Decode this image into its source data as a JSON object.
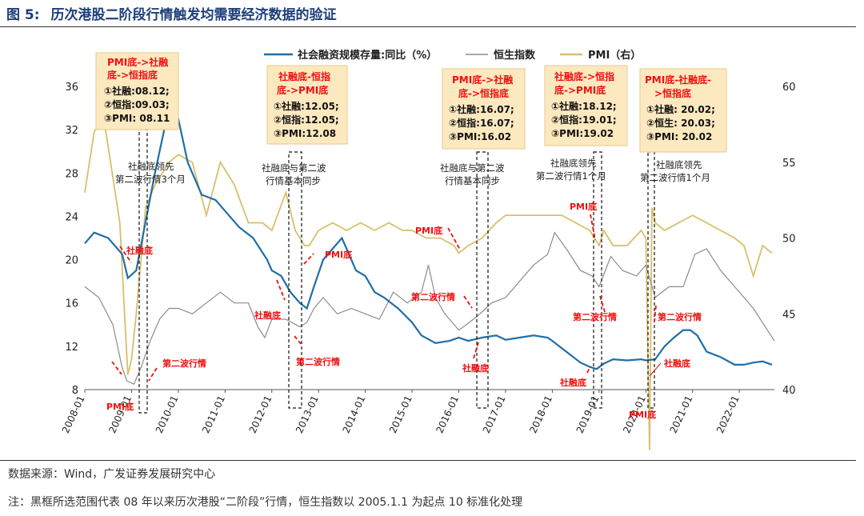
{
  "figure": {
    "number": "图 5:",
    "title": "历次港股二阶段行情触发均需要经济数据的验证"
  },
  "source": "数据来源：Wind，广发证券发展研究中心",
  "note": "注：黑框所选范围代表 08 年以来历次港股“二阶段”行情，恒生指数以 2005.1.1 为起点 10 标准化处理",
  "chart_data": {
    "type": "line",
    "x_axis": {
      "tick_labels": [
        "2008-01",
        "2009-01",
        "2010-01",
        "2011-01",
        "2012-01",
        "2013-01",
        "2014-01",
        "2015-01",
        "2016-01",
        "2017-01",
        "2018-01",
        "2019-01",
        "2020-01",
        "2021-01",
        "2022-01"
      ],
      "range": [
        2008.0,
        2022.75
      ]
    },
    "y_left": {
      "range": [
        8,
        36
      ],
      "ticks": [
        "8",
        "12",
        "16",
        "20",
        "24",
        "28",
        "32",
        "36"
      ]
    },
    "y_right": {
      "range": [
        40,
        60
      ],
      "ticks": [
        "40",
        "45",
        "50",
        "55",
        "60"
      ]
    },
    "legend": {
      "position": "top",
      "items": [
        {
          "name": "社会融资规模存量:同比（%）",
          "color": "#1f6fa8"
        },
        {
          "name": "恒生指数",
          "color": "#8c8c8c"
        },
        {
          "name": "PMI（右）",
          "color": "#d9bf6a"
        }
      ]
    },
    "series": [
      {
        "name": "社会融资规模存量:同比（%）",
        "axis": "left",
        "color": "#1f6fa8",
        "x": [
          2008.0,
          2008.2,
          2008.5,
          2008.8,
          2008.92,
          2009.1,
          2009.3,
          2009.5,
          2009.7,
          2009.9,
          2010.0,
          2010.2,
          2010.5,
          2010.8,
          2011.0,
          2011.3,
          2011.6,
          2011.9,
          2012.0,
          2012.2,
          2012.4,
          2012.6,
          2012.75,
          2012.9,
          2013.1,
          2013.3,
          2013.5,
          2013.8,
          2014.0,
          2014.2,
          2014.4,
          2014.7,
          2015.0,
          2015.2,
          2015.5,
          2015.8,
          2016.0,
          2016.2,
          2016.5,
          2016.8,
          2017.0,
          2017.3,
          2017.6,
          2017.9,
          2018.0,
          2018.3,
          2018.6,
          2018.8,
          2018.95,
          2019.1,
          2019.3,
          2019.6,
          2019.9,
          2020.0,
          2020.2,
          2020.4,
          2020.6,
          2020.8,
          2020.95,
          2021.1,
          2021.3,
          2021.6,
          2021.9,
          2022.1,
          2022.3,
          2022.5,
          2022.7
        ],
        "values": [
          21.5,
          22.5,
          22,
          20.5,
          18.3,
          19,
          23.5,
          28,
          32,
          34.5,
          33,
          29,
          26,
          25.5,
          24.5,
          23,
          22,
          20,
          19,
          18.5,
          17,
          16,
          15.5,
          17.5,
          20,
          21,
          22,
          19,
          18.5,
          17,
          16.5,
          15.5,
          14.2,
          13,
          12.3,
          12.5,
          12.8,
          12.5,
          12.8,
          13,
          12.6,
          12.8,
          13,
          12.8,
          12.5,
          11.5,
          10.5,
          10.1,
          9.9,
          10.4,
          10.8,
          10.7,
          10.8,
          10.7,
          10.8,
          12,
          12.8,
          13.5,
          13.5,
          13,
          11.5,
          11,
          10.3,
          10.3,
          10.5,
          10.6,
          10.3
        ]
      },
      {
        "name": "恒生指数",
        "axis": "left",
        "color": "#8c8c8c",
        "x": [
          2008.0,
          2008.3,
          2008.6,
          2008.8,
          2008.9,
          2009.05,
          2009.2,
          2009.4,
          2009.6,
          2009.8,
          2010.0,
          2010.3,
          2010.6,
          2010.9,
          2011.2,
          2011.5,
          2011.7,
          2011.85,
          2012.0,
          2012.3,
          2012.6,
          2012.75,
          2012.9,
          2013.1,
          2013.4,
          2013.7,
          2014.0,
          2014.3,
          2014.6,
          2014.9,
          2015.2,
          2015.35,
          2015.5,
          2015.7,
          2016.0,
          2016.1,
          2016.4,
          2016.7,
          2017.0,
          2017.3,
          2017.6,
          2017.9,
          2018.05,
          2018.3,
          2018.6,
          2018.85,
          2019.0,
          2019.25,
          2019.5,
          2019.8,
          2020.0,
          2020.2,
          2020.5,
          2020.8,
          2021.05,
          2021.3,
          2021.6,
          2021.9,
          2022.1,
          2022.3,
          2022.6,
          2022.75
        ],
        "values": [
          17.5,
          16.5,
          14,
          10,
          8.8,
          8.5,
          10,
          12.5,
          14.5,
          15.5,
          15.5,
          15,
          16,
          17,
          16,
          16,
          13.8,
          12.8,
          14.5,
          14.5,
          13.8,
          14.2,
          15.5,
          16.5,
          15,
          15.5,
          15,
          14.5,
          17,
          16,
          17,
          19.5,
          16.5,
          15,
          13.5,
          13.8,
          14.8,
          16,
          16.5,
          18,
          19.5,
          20.5,
          22.5,
          21,
          19,
          18.5,
          17.5,
          20.3,
          19,
          18.5,
          19.5,
          16.5,
          17.5,
          17.5,
          20.5,
          21,
          19,
          17.5,
          16.5,
          15.5,
          13.5,
          12.5
        ]
      },
      {
        "name": "PMI（右）",
        "axis": "right",
        "color": "#d9bf6a",
        "x": [
          2008.0,
          2008.2,
          2008.4,
          2008.6,
          2008.75,
          2008.85,
          2008.92,
          2009.0,
          2009.1,
          2009.3,
          2009.5,
          2009.8,
          2010.0,
          2010.3,
          2010.6,
          2010.9,
          2011.2,
          2011.5,
          2011.8,
          2012.0,
          2012.3,
          2012.5,
          2012.7,
          2012.8,
          2013.0,
          2013.3,
          2013.6,
          2013.9,
          2014.2,
          2014.5,
          2014.8,
          2015.0,
          2015.3,
          2015.6,
          2015.9,
          2016.0,
          2016.2,
          2016.5,
          2016.8,
          2017.0,
          2017.3,
          2017.6,
          2017.9,
          2018.2,
          2018.5,
          2018.8,
          2019.0,
          2019.1,
          2019.3,
          2019.6,
          2019.9,
          2020.0,
          2020.08,
          2020.13,
          2020.2,
          2020.4,
          2020.7,
          2021.0,
          2021.3,
          2021.6,
          2021.9,
          2022.1,
          2022.3,
          2022.5,
          2022.7
        ],
        "values": [
          53,
          57,
          58,
          54,
          51,
          45,
          41,
          42,
          45,
          52,
          53.5,
          55,
          55.5,
          55,
          51.5,
          55,
          53.5,
          51,
          51,
          50.5,
          53,
          50.5,
          49.5,
          49.5,
          50.5,
          51,
          50.5,
          51,
          50.5,
          51,
          50.5,
          50.5,
          50,
          50,
          49.5,
          49,
          49.5,
          50,
          51,
          51.5,
          51.5,
          51.5,
          51.5,
          51.5,
          51,
          50.5,
          49.5,
          50.5,
          49.5,
          49.5,
          50.5,
          50,
          36,
          52,
          51,
          50.5,
          51,
          51.5,
          51,
          50.5,
          50,
          49.5,
          47.5,
          49.5,
          49
        ]
      }
    ],
    "annotation_boxes": [
      {
        "title": [
          "PMI底->社融",
          "底->恒指底"
        ],
        "lines": [
          "①社融:08.12;",
          "②恒指:09.03;",
          "③PMI: 08.11"
        ]
      },
      {
        "title": [
          "社融底-恒指",
          "底->PMI底"
        ],
        "lines": [
          "①社融:12.05;",
          "②恒指:12.05;",
          "③PMI:12.08"
        ]
      },
      {
        "title": [
          "PMI底->社融",
          "底->恒指底"
        ],
        "lines": [
          "①社融:16.07;",
          "②恒指:16.07;",
          "③PMI:16.02"
        ]
      },
      {
        "title": [
          "社融底->恒指",
          "底->PMI底"
        ],
        "lines": [
          "①社融:18.12;",
          "②恒指:19.01;",
          "③PMI:19.02"
        ]
      },
      {
        "title": [
          "PMI底-社融底-",
          ">恒指底"
        ],
        "lines": [
          "①社融: 20.02;",
          "②恒生: 20.03;",
          "③PMI: 20.02"
        ]
      }
    ],
    "annotations": {
      "a1": [
        "社融底领先",
        "第二波行情3个月"
      ],
      "a2": [
        "社融底与第二波",
        "行情基本同步"
      ],
      "a3": [
        "社融底与第二波",
        "行情基本同步"
      ],
      "a4": [
        "社融底领先",
        "第二波行情1个月"
      ],
      "a5": [
        "社融底领先",
        "第二波行情1个月"
      ],
      "shedi": "社融底",
      "pmidi": "PMI底",
      "erbo": "第二波行情"
    }
  }
}
